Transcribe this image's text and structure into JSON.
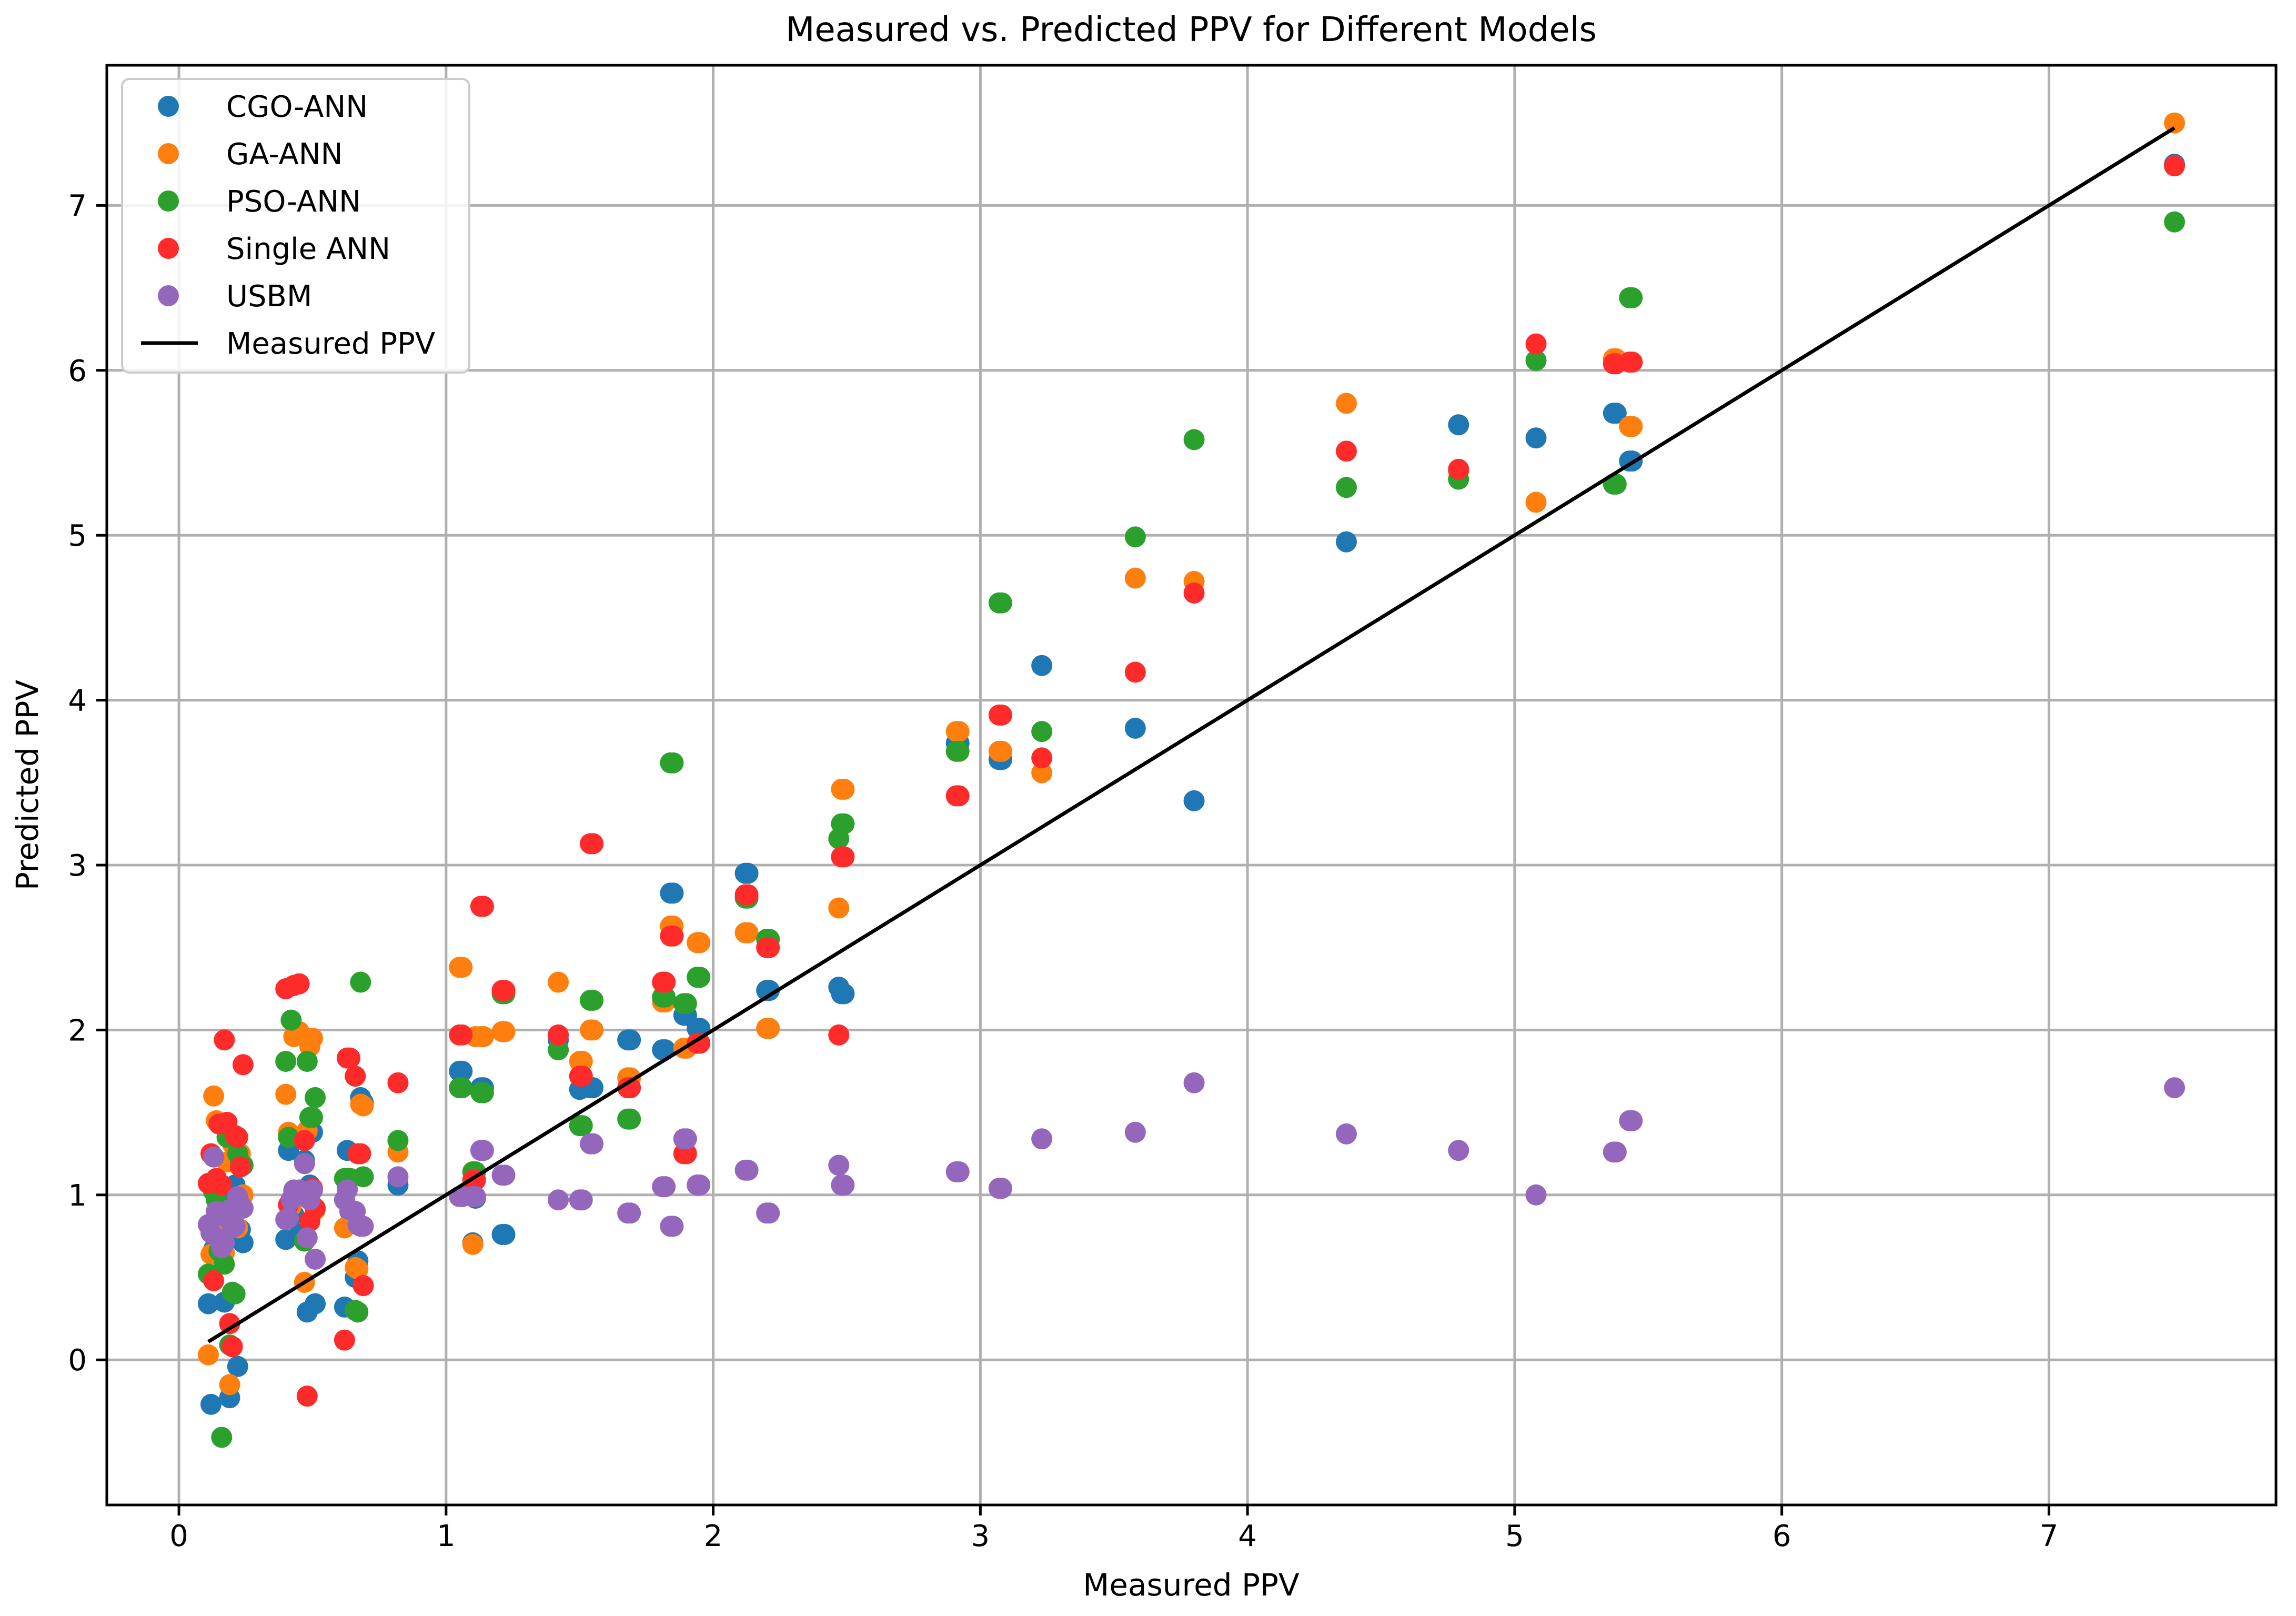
{
  "chart_data": {
    "type": "scatter",
    "title": "Measured vs. Predicted PPV for Different Models",
    "xlabel": "Measured PPV",
    "ylabel": "Predicted PPV",
    "xlim": [
      -0.27,
      7.85
    ],
    "ylim": [
      -0.88,
      7.85
    ],
    "xticks": [
      0,
      1,
      2,
      3,
      4,
      5,
      6,
      7
    ],
    "yticks": [
      0,
      1,
      2,
      3,
      4,
      5,
      6,
      7
    ],
    "grid": true,
    "legend": "top-left",
    "measured": [
      0.11,
      0.12,
      0.13,
      0.14,
      0.15,
      0.16,
      0.17,
      0.18,
      0.19,
      0.2,
      0.21,
      0.22,
      0.23,
      0.24,
      0.4,
      0.41,
      0.42,
      0.43,
      0.45,
      0.47,
      0.48,
      0.49,
      0.5,
      0.51,
      0.62,
      0.63,
      0.64,
      0.66,
      0.67,
      0.68,
      0.69,
      0.82,
      1.05,
      1.06,
      1.1,
      1.11,
      1.13,
      1.14,
      1.21,
      1.22,
      1.42,
      1.5,
      1.51,
      1.54,
      1.55,
      1.68,
      1.69,
      1.81,
      1.82,
      1.84,
      1.85,
      1.89,
      1.9,
      1.94,
      1.95,
      2.12,
      2.13,
      2.2,
      2.21,
      2.47,
      2.48,
      2.49,
      2.91,
      2.92,
      3.07,
      3.08,
      3.23,
      3.58,
      3.8,
      4.37,
      4.79,
      5.08,
      5.37,
      5.38,
      5.43,
      5.44,
      7.47
    ],
    "series": [
      {
        "name": "CGO-ANN",
        "color": "#1f77b4",
        "values": [
          0.34,
          -0.27,
          0.67,
          0.88,
          0.82,
          0.63,
          0.35,
          0.98,
          -0.23,
          0.76,
          1.06,
          -0.04,
          0.79,
          0.71,
          0.73,
          1.27,
          0.9,
          0.88,
          0.76,
          1.21,
          0.29,
          1.06,
          1.38,
          0.34,
          0.32,
          1.27,
          0.9,
          0.5,
          0.6,
          1.59,
          1.56,
          1.06,
          1.75,
          1.75,
          0.71,
          0.98,
          1.65,
          1.65,
          0.76,
          0.76,
          1.94,
          1.64,
          1.66,
          1.65,
          1.65,
          1.94,
          1.94,
          1.88,
          1.88,
          2.83,
          2.83,
          2.09,
          2.09,
          2.01,
          2.01,
          2.95,
          2.95,
          2.24,
          2.24,
          2.26,
          2.22,
          2.22,
          3.74,
          3.74,
          3.64,
          3.64,
          4.21,
          3.83,
          3.39,
          4.96,
          5.67,
          5.59,
          5.74,
          5.74,
          5.45,
          5.45,
          7.25
        ]
      },
      {
        "name": "GA-ANN",
        "color": "#ff7f0e",
        "values": [
          0.03,
          0.64,
          1.6,
          1.45,
          0.8,
          0.76,
          0.65,
          1.2,
          -0.15,
          1.31,
          0.82,
          0.8,
          1.25,
          1.0,
          1.61,
          1.38,
          0.93,
          1.96,
          1.99,
          0.47,
          1.39,
          1.9,
          1.95,
          0.91,
          0.8,
          1.04,
          1.1,
          0.56,
          0.55,
          1.55,
          1.54,
          1.26,
          2.38,
          2.38,
          0.7,
          1.96,
          1.96,
          1.96,
          1.99,
          1.99,
          2.29,
          1.81,
          1.81,
          2.0,
          2.0,
          1.71,
          1.71,
          2.17,
          2.17,
          2.63,
          2.63,
          1.89,
          1.89,
          2.53,
          2.53,
          2.59,
          2.59,
          2.01,
          2.01,
          2.74,
          3.46,
          3.46,
          3.81,
          3.81,
          3.69,
          3.69,
          3.56,
          4.74,
          4.72,
          5.8,
          5.39,
          5.2,
          6.07,
          6.07,
          5.66,
          5.66,
          7.5
        ]
      },
      {
        "name": "PSO-ANN",
        "color": "#2ca02c",
        "values": [
          0.52,
          0.51,
          1.02,
          0.97,
          0.66,
          -0.47,
          0.58,
          1.35,
          0.09,
          0.41,
          0.4,
          1.25,
          1.19,
          1.18,
          1.81,
          1.35,
          2.06,
          1.02,
          1.02,
          0.72,
          1.81,
          1.47,
          1.47,
          1.59,
          1.1,
          1.1,
          1.1,
          0.3,
          0.29,
          2.29,
          1.11,
          1.33,
          1.65,
          1.65,
          1.14,
          1.14,
          1.62,
          1.62,
          2.22,
          2.22,
          1.88,
          1.42,
          1.42,
          2.18,
          2.18,
          1.46,
          1.46,
          2.2,
          2.2,
          3.62,
          3.62,
          2.16,
          2.16,
          2.32,
          2.32,
          2.8,
          2.8,
          2.55,
          2.55,
          3.16,
          3.25,
          3.25,
          3.69,
          3.69,
          4.59,
          4.59,
          3.81,
          4.99,
          5.58,
          5.29,
          5.34,
          6.06,
          5.31,
          5.31,
          6.44,
          6.44,
          6.9
        ]
      },
      {
        "name": "Single ANN",
        "color": "#ff2a2a",
        "values": [
          1.07,
          1.25,
          0.48,
          1.1,
          1.43,
          1.06,
          1.94,
          1.44,
          0.22,
          0.08,
          1.36,
          1.35,
          1.17,
          1.79,
          2.25,
          0.94,
          0.97,
          2.27,
          2.28,
          1.33,
          -0.22,
          0.84,
          1.04,
          0.92,
          0.12,
          1.83,
          1.83,
          1.72,
          1.25,
          1.25,
          0.45,
          1.68,
          1.97,
          1.97,
          1.09,
          1.09,
          2.75,
          2.75,
          2.24,
          2.24,
          1.97,
          1.72,
          1.72,
          3.13,
          3.13,
          1.65,
          1.65,
          2.29,
          2.29,
          2.57,
          2.57,
          1.25,
          1.25,
          1.92,
          1.92,
          2.82,
          2.82,
          2.5,
          2.5,
          1.97,
          3.05,
          3.05,
          3.42,
          3.42,
          3.91,
          3.91,
          3.65,
          4.17,
          4.65,
          5.51,
          5.4,
          6.16,
          6.04,
          6.04,
          6.05,
          6.05,
          7.24
        ]
      },
      {
        "name": "USBM",
        "color": "#9467bd",
        "values": [
          0.82,
          0.77,
          1.23,
          0.9,
          0.73,
          0.68,
          0.71,
          0.86,
          0.91,
          0.8,
          0.81,
          0.99,
          0.94,
          0.92,
          0.85,
          0.86,
          0.97,
          1.03,
          1.03,
          1.19,
          0.74,
          0.97,
          1.03,
          0.61,
          0.97,
          1.03,
          0.91,
          0.9,
          0.82,
          0.81,
          0.81,
          1.11,
          0.99,
          0.99,
          0.99,
          0.99,
          1.27,
          1.27,
          1.12,
          1.12,
          0.97,
          0.97,
          0.97,
          1.31,
          1.31,
          0.89,
          0.89,
          1.05,
          1.05,
          0.81,
          0.81,
          1.34,
          1.34,
          1.06,
          1.06,
          1.15,
          1.15,
          0.89,
          0.89,
          1.18,
          1.06,
          1.06,
          1.14,
          1.14,
          1.04,
          1.04,
          1.34,
          1.38,
          1.68,
          1.37,
          1.27,
          1.0,
          1.26,
          1.26,
          1.45,
          1.45,
          1.65
        ]
      }
    ],
    "reference_line": {
      "name": "Measured PPV",
      "color": "#000000",
      "x": [
        0.11,
        7.47
      ],
      "y": [
        0.11,
        7.47
      ]
    }
  }
}
